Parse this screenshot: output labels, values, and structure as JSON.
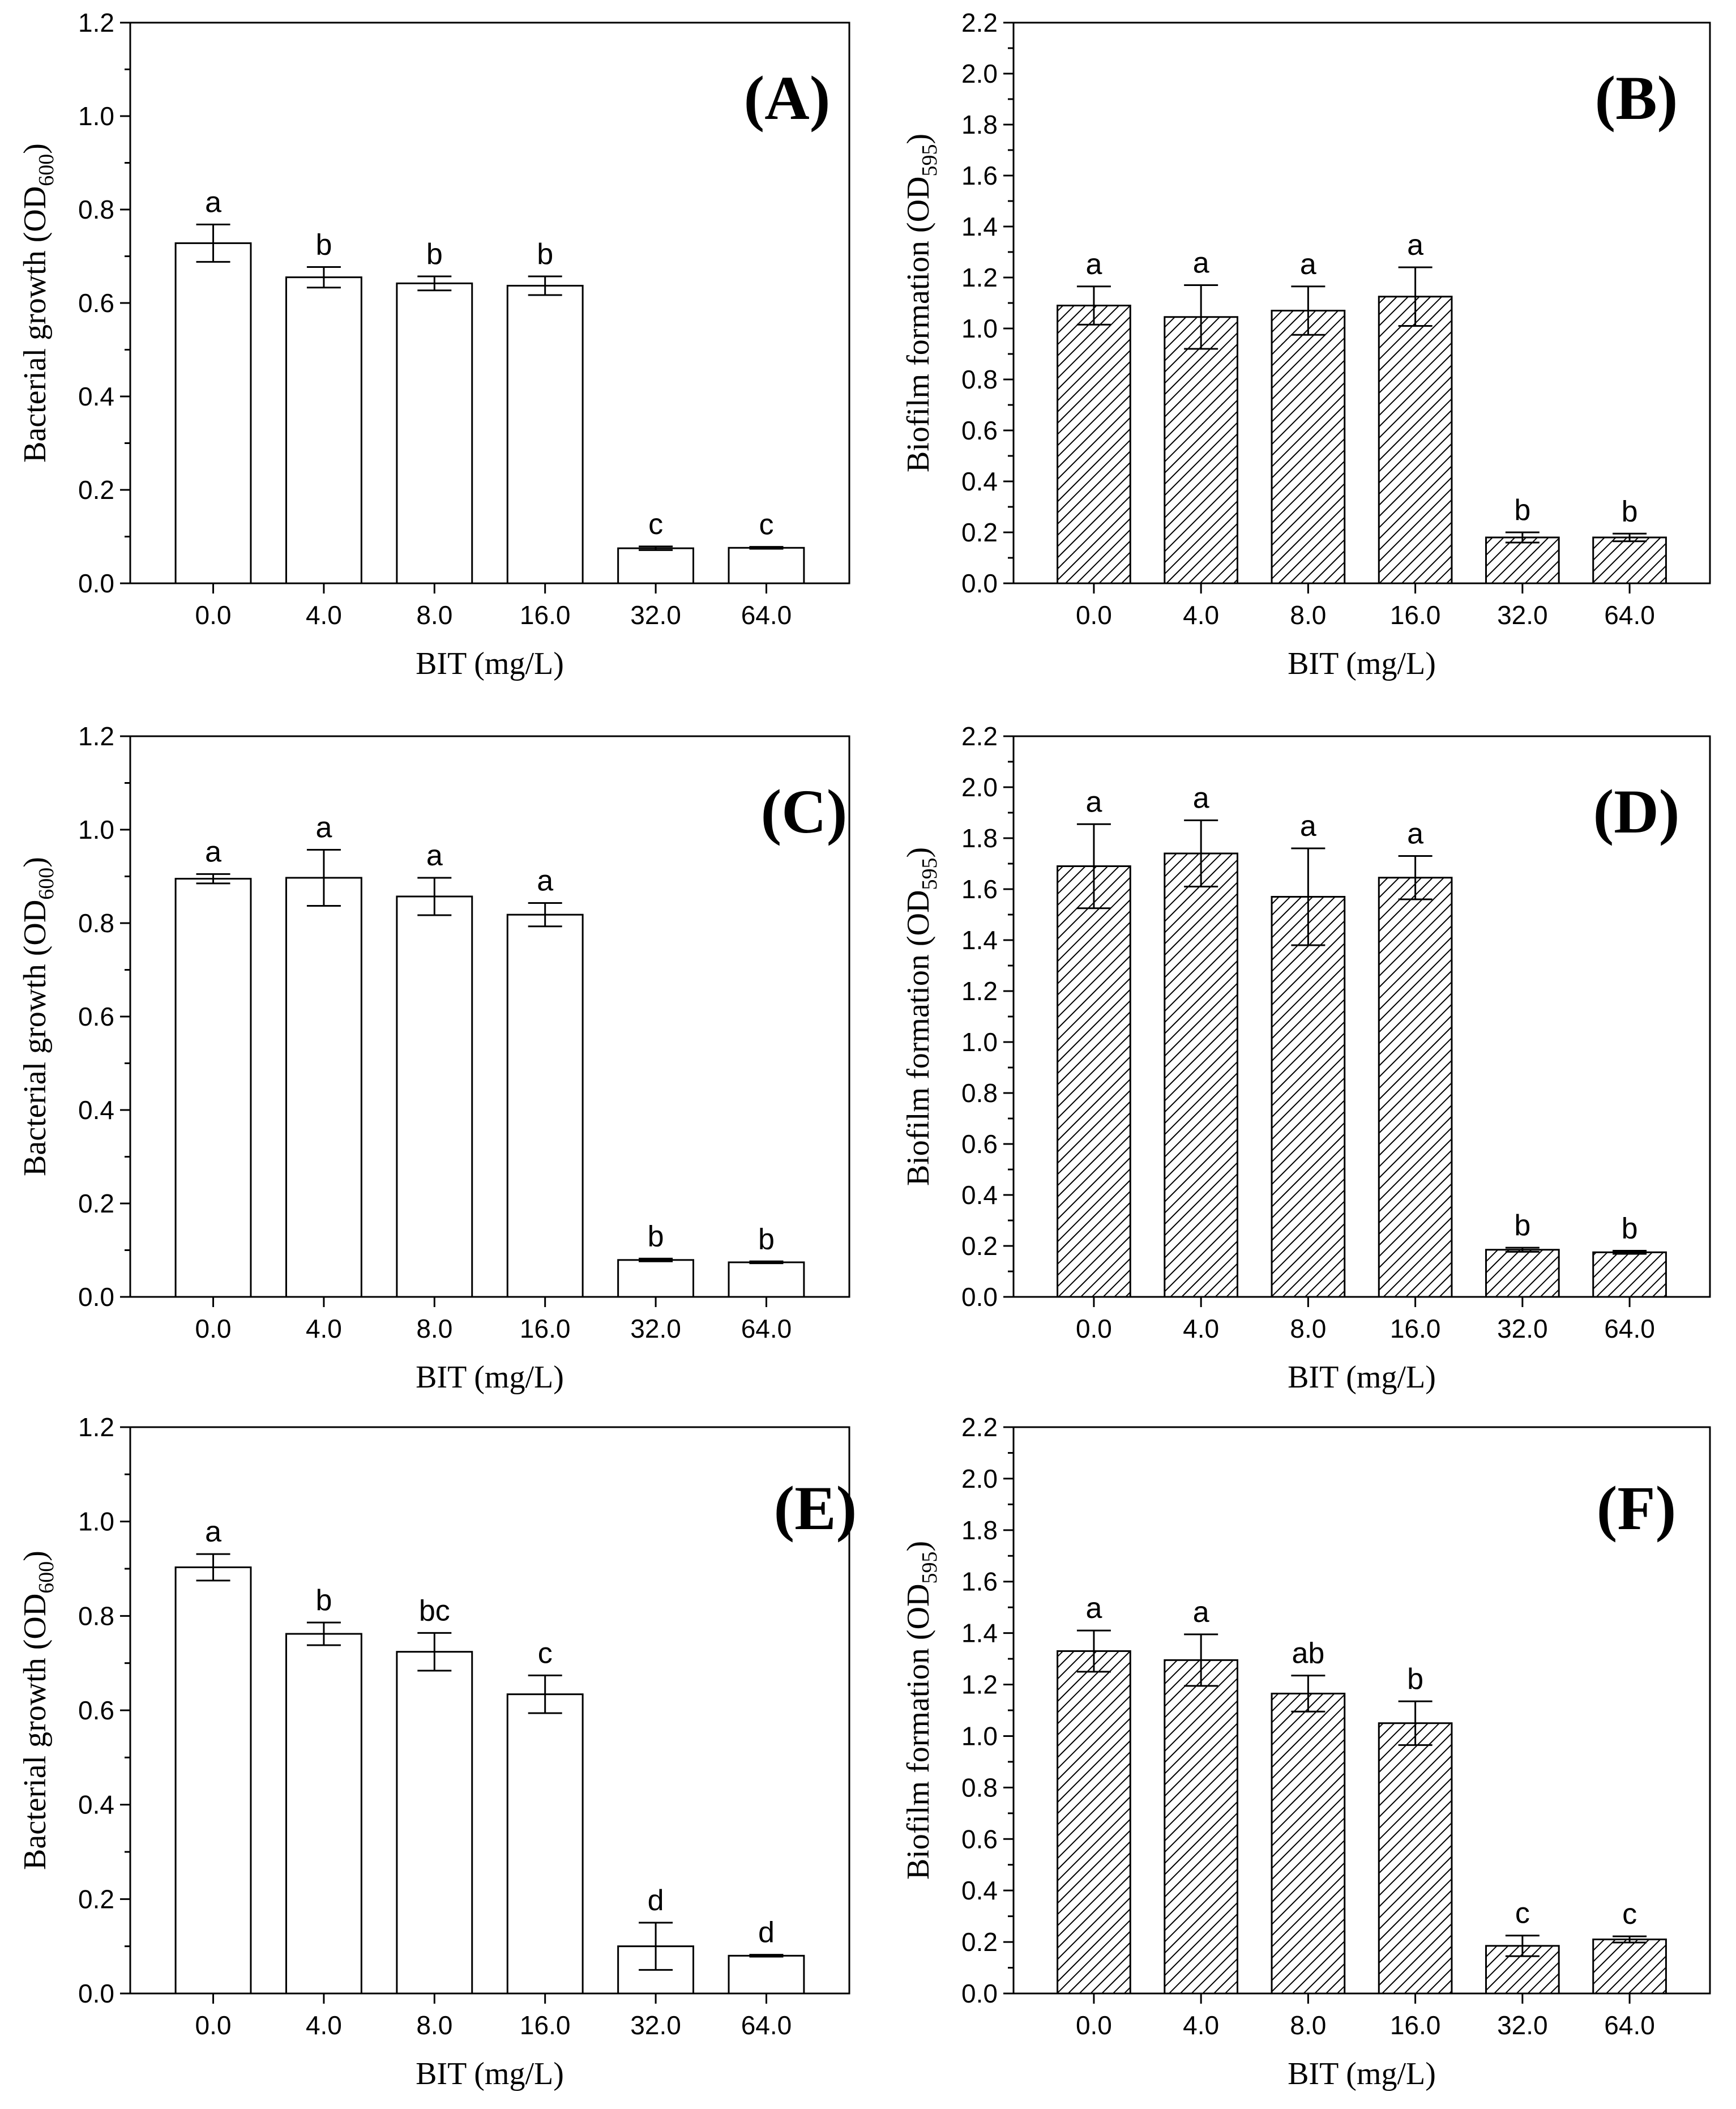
{
  "chart_data": [
    {
      "panel": "(A)",
      "type": "bar",
      "style": "open",
      "categories": [
        "0.0",
        "4.0",
        "8.0",
        "16.0",
        "32.0",
        "64.0"
      ],
      "values": [
        0.728,
        0.655,
        0.642,
        0.637,
        0.075,
        0.076
      ],
      "errors": [
        0.04,
        0.022,
        0.015,
        0.02,
        0.004,
        0.002
      ],
      "significance": [
        "a",
        "b",
        "b",
        "b",
        "c",
        "c"
      ],
      "xlabel": "BIT (mg/L)",
      "ylabel": {
        "main": "Bacterial growth (OD",
        "sub": "600",
        "end": ")"
      },
      "ylim": [
        0,
        1.2
      ],
      "yticks": [
        "0.0",
        "0.2",
        "0.4",
        "0.6",
        "0.8",
        "1.0",
        "1.2"
      ]
    },
    {
      "panel": "(B)",
      "type": "bar",
      "style": "hatched",
      "categories": [
        "0.0",
        "4.0",
        "8.0",
        "16.0",
        "32.0",
        "64.0"
      ],
      "values": [
        1.09,
        1.045,
        1.07,
        1.125,
        0.18,
        0.18
      ],
      "errors": [
        0.075,
        0.125,
        0.095,
        0.115,
        0.02,
        0.015
      ],
      "significance": [
        "a",
        "a",
        "a",
        "a",
        "b",
        "b"
      ],
      "xlabel": "BIT (mg/L)",
      "ylabel": {
        "main": "Biofilm formation (OD",
        "sub": "595",
        "end": ")"
      },
      "ylim": [
        0,
        2.2
      ],
      "yticks": [
        "0.0",
        "0.2",
        "0.4",
        "0.6",
        "0.8",
        "1.0",
        "1.2",
        "1.4",
        "1.6",
        "1.8",
        "2.0",
        "2.2"
      ]
    },
    {
      "panel": "(C)",
      "type": "bar",
      "style": "open",
      "categories": [
        "0.0",
        "4.0",
        "8.0",
        "16.0",
        "32.0",
        "64.0"
      ],
      "values": [
        0.895,
        0.897,
        0.857,
        0.818,
        0.079,
        0.074
      ],
      "errors": [
        0.01,
        0.06,
        0.04,
        0.025,
        0.003,
        0.002
      ],
      "significance": [
        "a",
        "a",
        "a",
        "a",
        "b",
        "b"
      ],
      "xlabel": "BIT (mg/L)",
      "ylabel": {
        "main": "Bacterial growth (OD",
        "sub": "600",
        "end": ")"
      },
      "ylim": [
        0,
        1.2
      ],
      "yticks": [
        "0.0",
        "0.2",
        "0.4",
        "0.6",
        "0.8",
        "1.0",
        "1.2"
      ]
    },
    {
      "panel": "(D)",
      "type": "bar",
      "style": "hatched",
      "categories": [
        "0.0",
        "4.0",
        "8.0",
        "16.0",
        "32.0",
        "64.0"
      ],
      "values": [
        1.69,
        1.74,
        1.57,
        1.645,
        0.185,
        0.175
      ],
      "errors": [
        0.165,
        0.13,
        0.19,
        0.085,
        0.008,
        0.006
      ],
      "significance": [
        "a",
        "a",
        "a",
        "a",
        "b",
        "b"
      ],
      "xlabel": "BIT (mg/L)",
      "ylabel": {
        "main": "Biofilm formation (OD",
        "sub": "595",
        "end": ")"
      },
      "ylim": [
        0,
        2.2
      ],
      "yticks": [
        "0.0",
        "0.2",
        "0.4",
        "0.6",
        "0.8",
        "1.0",
        "1.2",
        "1.4",
        "1.6",
        "1.8",
        "2.0",
        "2.2"
      ]
    },
    {
      "panel": "(E)",
      "type": "bar",
      "style": "open",
      "categories": [
        "0.0",
        "4.0",
        "8.0",
        "16.0",
        "32.0",
        "64.0"
      ],
      "values": [
        0.903,
        0.762,
        0.724,
        0.634,
        0.1,
        0.08
      ],
      "errors": [
        0.028,
        0.024,
        0.04,
        0.04,
        0.05,
        0.002
      ],
      "significance": [
        "a",
        "b",
        "bc",
        "c",
        "d",
        "d"
      ],
      "xlabel": "BIT (mg/L)",
      "ylabel": {
        "main": "Bacterial growth (OD",
        "sub": "600",
        "end": ")"
      },
      "ylim": [
        0,
        1.2
      ],
      "yticks": [
        "0.0",
        "0.2",
        "0.4",
        "0.6",
        "0.8",
        "1.0",
        "1.2"
      ]
    },
    {
      "panel": "(F)",
      "type": "bar",
      "style": "hatched",
      "categories": [
        "0.0",
        "4.0",
        "8.0",
        "16.0",
        "32.0",
        "64.0"
      ],
      "values": [
        1.33,
        1.295,
        1.165,
        1.05,
        0.185,
        0.21
      ],
      "errors": [
        0.08,
        0.1,
        0.07,
        0.085,
        0.04,
        0.012
      ],
      "significance": [
        "a",
        "a",
        "ab",
        "b",
        "c",
        "c"
      ],
      "xlabel": "BIT (mg/L)",
      "ylabel": {
        "main": "Biofilm formation (OD",
        "sub": "595",
        "end": ")"
      },
      "ylim": [
        0,
        2.2
      ],
      "yticks": [
        "0.0",
        "0.2",
        "0.4",
        "0.6",
        "0.8",
        "1.0",
        "1.2",
        "1.4",
        "1.6",
        "1.8",
        "2.0",
        "2.2"
      ]
    }
  ]
}
